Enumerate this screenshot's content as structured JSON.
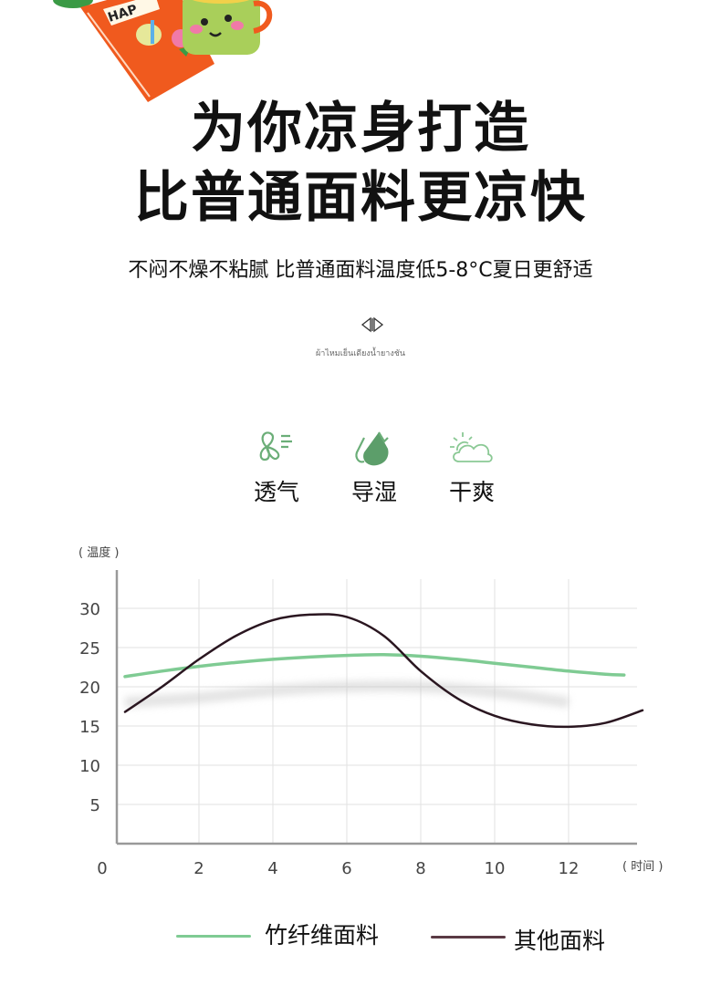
{
  "illustration": {
    "book_text": "HAP"
  },
  "headline": {
    "line1": "为你凉身打造",
    "line2": "比普通面料更凉快"
  },
  "subheadline": "不闷不燥不粘腻 比普通面料温度低5-8°C夏日更舒适",
  "divider": {
    "icon": "diamond-icon",
    "caption": "ผ้าไหมเย็นเดียงน้ำยางชัน"
  },
  "features": [
    {
      "label": "透气",
      "icon": "fan-wind-icon"
    },
    {
      "label": "导湿",
      "icon": "water-drop-icon"
    },
    {
      "label": "干爽",
      "icon": "sun-cloud-icon"
    }
  ],
  "colors": {
    "accent_green": "#7fcb93",
    "other_line": "#2a1620",
    "icon_green": "#5c9e6a"
  },
  "chart_data": {
    "type": "line",
    "ylabel": "( 温度 )",
    "xlabel": "( 时间 )",
    "xlim": [
      0,
      14
    ],
    "ylim": [
      0,
      32
    ],
    "x_ticks": [
      0,
      2,
      4,
      6,
      8,
      10,
      12
    ],
    "y_ticks": [
      5,
      10,
      15,
      20,
      25,
      30
    ],
    "grid": true,
    "legend_position": "bottom",
    "series": [
      {
        "name": "竹纤维面料",
        "color": "#7fcb93",
        "x": [
          0,
          1,
          2,
          3,
          4,
          5,
          6,
          7,
          8,
          9,
          10,
          11,
          12,
          13,
          13.5
        ],
        "y": [
          21.3,
          22.0,
          22.6,
          23.1,
          23.5,
          23.8,
          24.0,
          24.1,
          23.9,
          23.5,
          23.0,
          22.5,
          22.0,
          21.6,
          21.5
        ]
      },
      {
        "name": "其他面料",
        "color": "#2a1620",
        "x": [
          0,
          1,
          2,
          3,
          4,
          5,
          6,
          7,
          8,
          9,
          10,
          11,
          12,
          13,
          14
        ],
        "y": [
          16.8,
          20.0,
          23.5,
          26.5,
          28.5,
          29.2,
          28.9,
          26.5,
          22.0,
          18.5,
          16.3,
          15.2,
          14.9,
          15.4,
          17.0
        ]
      }
    ]
  }
}
